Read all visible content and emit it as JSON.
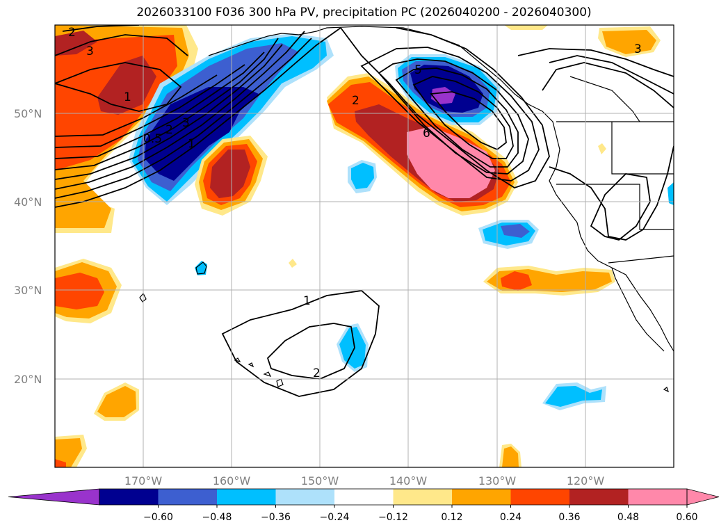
{
  "title": "2026033100 F036 300 hPa PV, precipitation PC (2026040200 - 2026040300)",
  "map": {
    "lon_labels": [
      "170°W",
      "160°W",
      "150°W",
      "140°W",
      "130°W",
      "120°W"
    ],
    "lat_labels": [
      "50°N",
      "40°N",
      "30°N",
      "20°N"
    ],
    "contour_labels": [
      "2",
      "3",
      "1",
      "1",
      "2",
      "0.5",
      "3",
      "2",
      "5",
      "6",
      "2",
      "1",
      "3"
    ]
  },
  "colorbar": {
    "ticks": [
      "−0.60",
      "−0.48",
      "−0.36",
      "−0.24",
      "−0.12",
      "0.12",
      "0.24",
      "0.36",
      "0.48",
      "0.60"
    ],
    "colors": [
      "#9933cc",
      "#000090",
      "#3d5fd0",
      "#00bfff",
      "#aee1fb",
      "#ffffff",
      "#ffe88a",
      "#ffa500",
      "#ff4500",
      "#b22222",
      "#ff88aa",
      "#ff88aa"
    ]
  }
}
